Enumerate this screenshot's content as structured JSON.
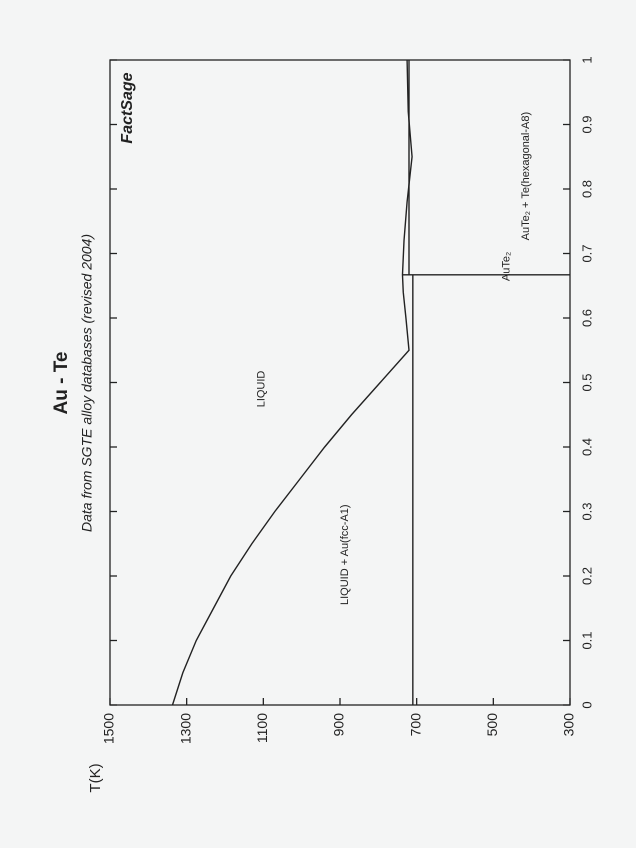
{
  "chart_data": {
    "type": "line",
    "title": "Au - Te",
    "subtitle": "Data from SGTE alloy databases (revised 2004)",
    "y_label": "T(K)",
    "logo": "FactSage",
    "xlim": [
      0,
      1
    ],
    "xticks": [
      0,
      0.1,
      0.2,
      0.3,
      0.4,
      0.5,
      0.6,
      0.7,
      0.8,
      0.9,
      1
    ],
    "ylim": [
      300,
      1500
    ],
    "yticks": [
      300,
      500,
      700,
      900,
      1100,
      1300,
      1500
    ],
    "color": "#222222",
    "lines": [
      {
        "x": [
          0,
          0.05,
          0.1,
          0.15,
          0.2,
          0.25,
          0.3,
          0.35,
          0.4,
          0.45,
          0.5,
          0.55,
          0.6,
          0.64,
          0.667,
          0.72,
          0.78,
          0.85,
          0.92,
          1
        ],
        "values": [
          1337,
          1310,
          1275,
          1230,
          1185,
          1130,
          1070,
          1005,
          940,
          870,
          795,
          720,
          728,
          735,
          737,
          733,
          725,
          712,
          722,
          725
        ]
      },
      {
        "x": [
          0,
          0.667
        ],
        "values": [
          710,
          710
        ]
      },
      {
        "x": [
          0.667,
          0.667
        ],
        "values": [
          300,
          737
        ]
      },
      {
        "x": [
          0.667,
          1
        ],
        "values": [
          720,
          720
        ]
      }
    ],
    "annotations": [
      {
        "text": "LIQUID",
        "x": 0.49,
        "y": 1104
      },
      {
        "text": "LIQUID + Au(fcc-A1)",
        "x": 0.233,
        "y": 887
      },
      {
        "text": "AuTe₂",
        "x": 0.68,
        "y": 466
      },
      {
        "text": "AuTe₂ + Te(hexagonal-A8)",
        "x": 0.82,
        "y": 415
      }
    ]
  }
}
